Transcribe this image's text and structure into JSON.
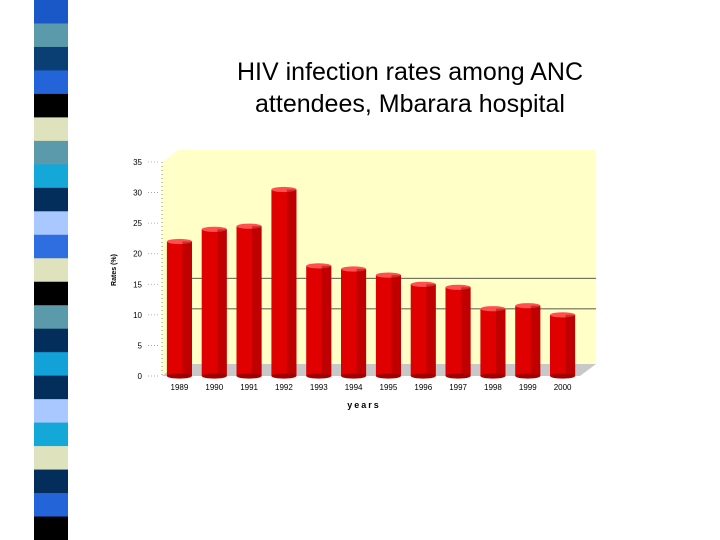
{
  "slide": {
    "title_line1": "HIV infection rates among ANC",
    "title_line2": "attendees, Mbarara hospital",
    "stripe_colors": [
      "#1a57c7",
      "#5b9aaa",
      "#0a3f73",
      "#2464d9",
      "#000000",
      "#dfe3bd",
      "#5b9aaa",
      "#14a8d9",
      "#032e5c",
      "#a8c8ff",
      "#2e6ee0",
      "#dfe3bd",
      "#000000",
      "#5b9aaa",
      "#032e5c",
      "#12a2d8",
      "#032e5c",
      "#a8c8ff",
      "#14a8d9",
      "#dfe3bd",
      "#032e5c",
      "#2464d9",
      "#000000"
    ]
  },
  "chart_data": {
    "type": "bar",
    "title": "",
    "xlabel": "years",
    "ylabel": "Rates (%)",
    "ylim": [
      0,
      35
    ],
    "yticks": [
      "0",
      "5",
      "10",
      "15",
      "20",
      "25",
      "30",
      "35"
    ],
    "categories": [
      "1989",
      "1990",
      "1991",
      "1992",
      "1993",
      "1994",
      "1995",
      "1996",
      "1997",
      "1998",
      "1999",
      "2000"
    ],
    "values": [
      22,
      24,
      24.5,
      30.5,
      18,
      17.5,
      16.5,
      15,
      14.5,
      11,
      11.5,
      10
    ],
    "bar_color": "#e00000",
    "plot_bg": "#ffffc8",
    "grid": true
  }
}
